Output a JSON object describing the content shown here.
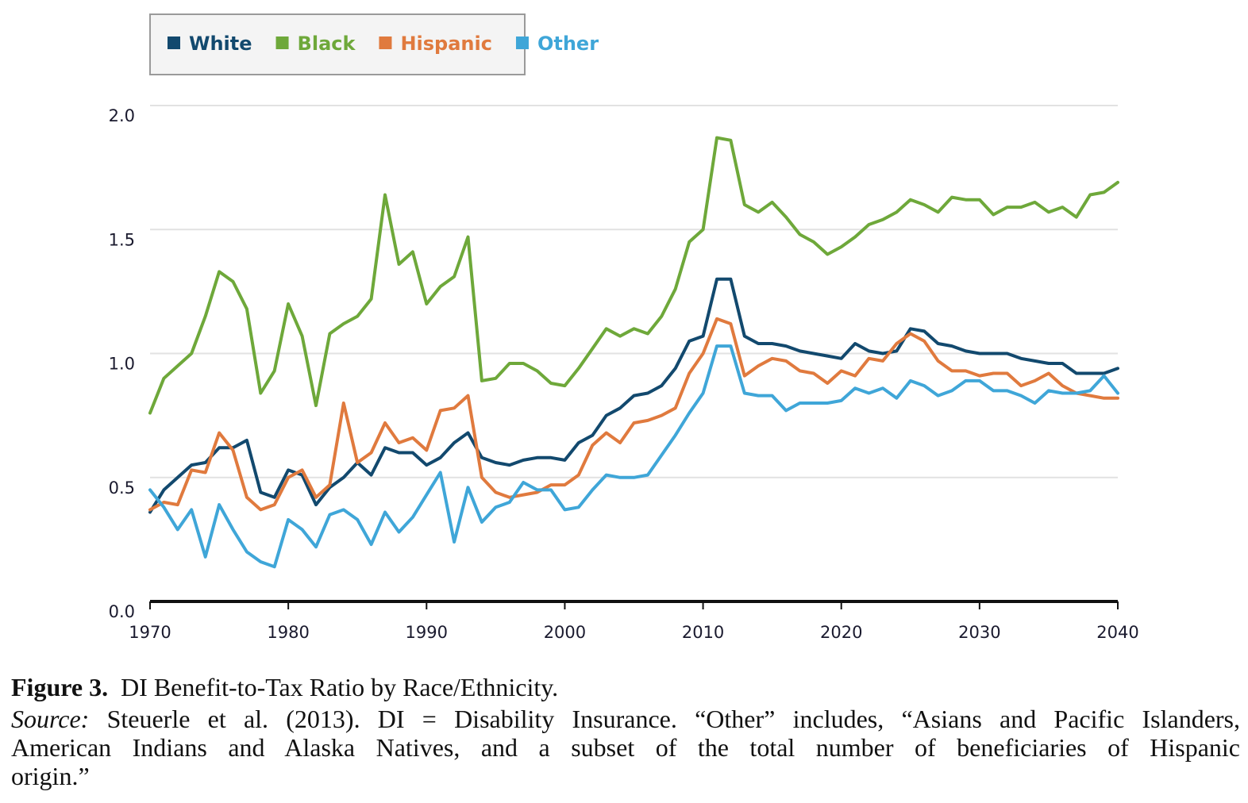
{
  "caption": {
    "label": "Figure 3.",
    "title": "DI Benefit-to-Tax Ratio by Race/Ethnicity.",
    "source_label": "Source:",
    "source_line1": "Steuerle et al. (2013). DI = Disability Insurance. “Other” includes, “Asians and Pacific Islanders,",
    "source_line2": "American Indians and Alaska Natives, and a subset of the total number of beneficiaries of Hispanic",
    "source_line3": "origin.”"
  },
  "chart_data": {
    "type": "line",
    "title": "",
    "xlabel": "",
    "ylabel": "",
    "xlim": [
      1970,
      2040
    ],
    "ylim": [
      0,
      2.0
    ],
    "xticks": [
      "1970",
      "1980",
      "1990",
      "2000",
      "2010",
      "2020",
      "2030",
      "2040"
    ],
    "yticks": [
      "0.0",
      "0.5",
      "1.0",
      "1.5",
      "2.0"
    ],
    "grid": "horizontal",
    "legend_position": "top-left",
    "x": [
      1970,
      1971,
      1972,
      1973,
      1974,
      1975,
      1976,
      1977,
      1978,
      1979,
      1980,
      1981,
      1982,
      1983,
      1984,
      1985,
      1986,
      1987,
      1988,
      1989,
      1990,
      1991,
      1992,
      1993,
      1994,
      1995,
      1996,
      1997,
      1998,
      1999,
      2000,
      2001,
      2002,
      2003,
      2004,
      2005,
      2006,
      2007,
      2008,
      2009,
      2010,
      2011,
      2012,
      2013,
      2014,
      2015,
      2016,
      2017,
      2018,
      2019,
      2020,
      2021,
      2022,
      2023,
      2024,
      2025,
      2026,
      2027,
      2028,
      2029,
      2030,
      2031,
      2032,
      2033,
      2034,
      2035,
      2036,
      2037,
      2038,
      2039,
      2040
    ],
    "series": [
      {
        "name": "White",
        "color": "#12496e",
        "values": [
          0.36,
          0.45,
          0.5,
          0.55,
          0.56,
          0.62,
          0.62,
          0.65,
          0.44,
          0.42,
          0.53,
          0.51,
          0.39,
          0.46,
          0.5,
          0.56,
          0.51,
          0.62,
          0.6,
          0.6,
          0.55,
          0.58,
          0.64,
          0.68,
          0.58,
          0.56,
          0.55,
          0.57,
          0.58,
          0.58,
          0.57,
          0.64,
          0.67,
          0.75,
          0.78,
          0.83,
          0.84,
          0.87,
          0.94,
          1.05,
          1.07,
          1.3,
          1.3,
          1.07,
          1.04,
          1.04,
          1.03,
          1.01,
          1.0,
          0.99,
          0.98,
          1.04,
          1.01,
          1.0,
          1.01,
          1.1,
          1.09,
          1.04,
          1.03,
          1.01,
          1.0,
          1.0,
          1.0,
          0.98,
          0.97,
          0.96,
          0.96,
          0.92,
          0.92,
          0.92,
          0.94
        ]
      },
      {
        "name": "Black",
        "color": "#6ea83a",
        "values": [
          0.76,
          0.9,
          0.95,
          1.0,
          1.15,
          1.33,
          1.29,
          1.18,
          0.84,
          0.93,
          1.2,
          1.07,
          0.79,
          1.08,
          1.12,
          1.15,
          1.22,
          1.64,
          1.36,
          1.41,
          1.2,
          1.27,
          1.31,
          1.47,
          0.89,
          0.9,
          0.96,
          0.96,
          0.93,
          0.88,
          0.87,
          0.94,
          1.02,
          1.1,
          1.07,
          1.1,
          1.08,
          1.15,
          1.26,
          1.45,
          1.5,
          1.87,
          1.86,
          1.6,
          1.57,
          1.61,
          1.55,
          1.48,
          1.45,
          1.4,
          1.43,
          1.47,
          1.52,
          1.54,
          1.57,
          1.62,
          1.6,
          1.57,
          1.63,
          1.62,
          1.62,
          1.56,
          1.59,
          1.59,
          1.61,
          1.57,
          1.59,
          1.55,
          1.64,
          1.65,
          1.69
        ]
      },
      {
        "name": "Hispanic",
        "color": "#e07a3e",
        "values": [
          0.37,
          0.4,
          0.39,
          0.53,
          0.52,
          0.68,
          0.61,
          0.42,
          0.37,
          0.39,
          0.5,
          0.53,
          0.42,
          0.47,
          0.8,
          0.56,
          0.6,
          0.72,
          0.64,
          0.66,
          0.61,
          0.77,
          0.78,
          0.83,
          0.5,
          0.44,
          0.42,
          0.43,
          0.44,
          0.47,
          0.47,
          0.51,
          0.63,
          0.68,
          0.64,
          0.72,
          0.73,
          0.75,
          0.78,
          0.92,
          1.0,
          1.14,
          1.12,
          0.91,
          0.95,
          0.98,
          0.97,
          0.93,
          0.92,
          0.88,
          0.93,
          0.91,
          0.98,
          0.97,
          1.04,
          1.08,
          1.05,
          0.97,
          0.93,
          0.93,
          0.91,
          0.92,
          0.92,
          0.87,
          0.89,
          0.92,
          0.87,
          0.84,
          0.83,
          0.82,
          0.82
        ]
      },
      {
        "name": "Other",
        "color": "#3fa6d8",
        "values": [
          0.45,
          0.38,
          0.29,
          0.37,
          0.18,
          0.39,
          0.29,
          0.2,
          0.16,
          0.14,
          0.33,
          0.29,
          0.22,
          0.35,
          0.37,
          0.33,
          0.23,
          0.36,
          0.28,
          0.34,
          0.43,
          0.52,
          0.24,
          0.46,
          0.32,
          0.38,
          0.4,
          0.48,
          0.45,
          0.45,
          0.37,
          0.38,
          0.45,
          0.51,
          0.5,
          0.5,
          0.51,
          0.59,
          0.67,
          0.76,
          0.84,
          1.03,
          1.03,
          0.84,
          0.83,
          0.83,
          0.77,
          0.8,
          0.8,
          0.8,
          0.81,
          0.86,
          0.84,
          0.86,
          0.82,
          0.89,
          0.87,
          0.83,
          0.85,
          0.89,
          0.89,
          0.85,
          0.85,
          0.83,
          0.8,
          0.85,
          0.84,
          0.84,
          0.85,
          0.91,
          0.84
        ]
      }
    ]
  }
}
